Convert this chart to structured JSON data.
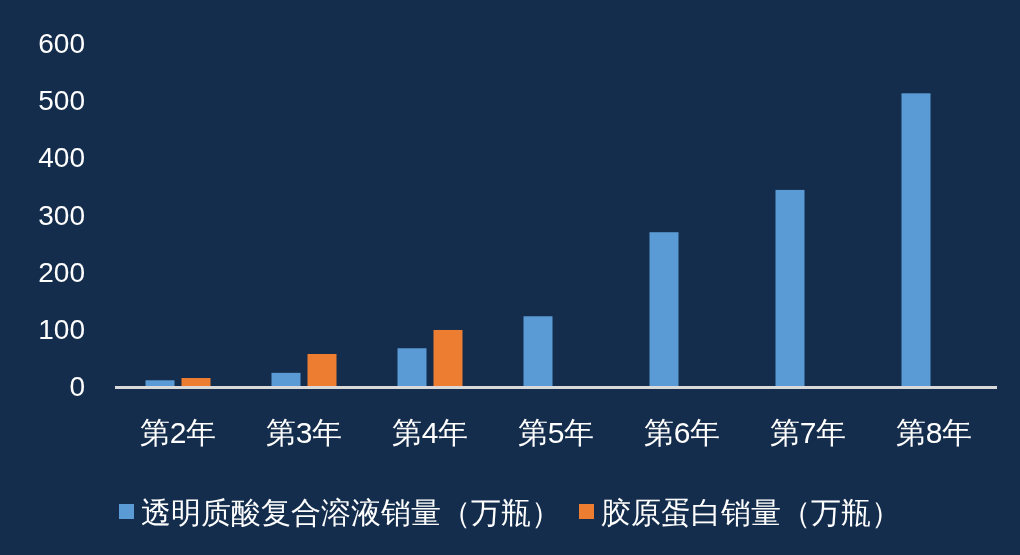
{
  "chart_data": {
    "type": "bar",
    "categories": [
      "第2年",
      "第3年",
      "第4年",
      "第5年",
      "第6年",
      "第7年",
      "第8年"
    ],
    "series": [
      {
        "name": "透明质酸复合溶液销量（万瓶）",
        "color": "#5b9bd5",
        "values": [
          10,
          23,
          66,
          122,
          269,
          343,
          512
        ]
      },
      {
        "name": "胶原蛋白销量（万瓶）",
        "color": "#ed7d31",
        "values": [
          14,
          56,
          98,
          null,
          null,
          null,
          null
        ]
      }
    ],
    "ylim": [
      0,
      600
    ],
    "yticks": [
      0,
      100,
      200,
      300,
      400,
      500,
      600
    ],
    "grid": false,
    "legend": "bottom"
  }
}
